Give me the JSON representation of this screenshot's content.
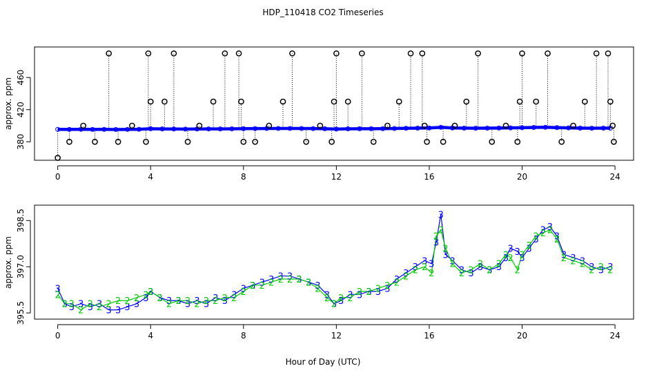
{
  "title": "HDP_110418  CO2 Timeseries",
  "chart_data": [
    {
      "type": "scatter",
      "ylabel": "approx. ppm",
      "xlim": [
        -1,
        24.8
      ],
      "ylim": [
        357,
        498
      ],
      "xticks": [
        0,
        4,
        8,
        12,
        16,
        20,
        24
      ],
      "yticks": [
        380,
        420,
        460
      ],
      "series": [
        {
          "color": "#0000ff",
          "x": [
            0.0,
            0.5,
            1.0,
            1.5,
            2.0,
            2.5,
            3.0,
            3.5,
            4.0,
            4.5,
            5.0,
            5.5,
            6.0,
            6.5,
            7.0,
            7.5,
            8.0,
            8.5,
            9.0,
            9.5,
            10.0,
            10.5,
            11.0,
            11.5,
            12.0,
            12.5,
            13.0,
            13.5,
            14.0,
            14.5,
            15.0,
            15.5,
            16.0,
            16.5,
            17.0,
            17.5,
            18.0,
            18.5,
            19.0,
            19.5,
            20.0,
            20.5,
            21.0,
            21.5,
            22.0,
            22.5,
            23.0,
            23.5,
            23.8
          ],
          "y": [
            395.5,
            395.4,
            395.6,
            395.4,
            395.5,
            395.3,
            395.4,
            395.6,
            396.2,
            396.0,
            395.9,
            395.8,
            395.9,
            396.0,
            396.0,
            396.1,
            396.3,
            396.4,
            396.5,
            396.6,
            396.6,
            396.5,
            396.4,
            396.2,
            395.8,
            396.1,
            396.2,
            396.2,
            396.3,
            396.5,
            396.8,
            397.0,
            397.2,
            398.0,
            397.2,
            397.0,
            396.9,
            397.0,
            397.1,
            397.3,
            397.5,
            397.8,
            398.0,
            397.6,
            397.3,
            397.0,
            396.9,
            397.0,
            397.0
          ]
        }
      ],
      "points": [
        {
          "x": 0.0,
          "y": 360
        },
        {
          "x": 0.5,
          "y": 380
        },
        {
          "x": 1.1,
          "y": 400
        },
        {
          "x": 1.6,
          "y": 380
        },
        {
          "x": 2.2,
          "y": 490
        },
        {
          "x": 2.6,
          "y": 380
        },
        {
          "x": 3.2,
          "y": 400
        },
        {
          "x": 3.8,
          "y": 380
        },
        {
          "x": 3.9,
          "y": 490
        },
        {
          "x": 4.0,
          "y": 430
        },
        {
          "x": 4.6,
          "y": 430
        },
        {
          "x": 5.0,
          "y": 490
        },
        {
          "x": 5.6,
          "y": 380
        },
        {
          "x": 6.1,
          "y": 400
        },
        {
          "x": 6.7,
          "y": 430
        },
        {
          "x": 7.2,
          "y": 490
        },
        {
          "x": 7.8,
          "y": 490
        },
        {
          "x": 7.9,
          "y": 430
        },
        {
          "x": 8.0,
          "y": 380
        },
        {
          "x": 8.5,
          "y": 380
        },
        {
          "x": 9.1,
          "y": 400
        },
        {
          "x": 9.7,
          "y": 430
        },
        {
          "x": 10.1,
          "y": 490
        },
        {
          "x": 10.7,
          "y": 380
        },
        {
          "x": 11.3,
          "y": 400
        },
        {
          "x": 11.8,
          "y": 380
        },
        {
          "x": 11.9,
          "y": 430
        },
        {
          "x": 12.0,
          "y": 490
        },
        {
          "x": 12.5,
          "y": 430
        },
        {
          "x": 13.1,
          "y": 490
        },
        {
          "x": 13.6,
          "y": 380
        },
        {
          "x": 14.2,
          "y": 400
        },
        {
          "x": 14.7,
          "y": 430
        },
        {
          "x": 15.2,
          "y": 490
        },
        {
          "x": 15.7,
          "y": 490
        },
        {
          "x": 15.8,
          "y": 400
        },
        {
          "x": 15.9,
          "y": 380
        },
        {
          "x": 16.6,
          "y": 380
        },
        {
          "x": 17.1,
          "y": 400
        },
        {
          "x": 17.6,
          "y": 430
        },
        {
          "x": 18.1,
          "y": 490
        },
        {
          "x": 18.7,
          "y": 380
        },
        {
          "x": 19.3,
          "y": 400
        },
        {
          "x": 19.8,
          "y": 380
        },
        {
          "x": 19.9,
          "y": 430
        },
        {
          "x": 20.0,
          "y": 490
        },
        {
          "x": 20.6,
          "y": 430
        },
        {
          "x": 21.1,
          "y": 490
        },
        {
          "x": 21.7,
          "y": 380
        },
        {
          "x": 22.2,
          "y": 400
        },
        {
          "x": 22.7,
          "y": 430
        },
        {
          "x": 23.2,
          "y": 490
        },
        {
          "x": 23.7,
          "y": 490
        },
        {
          "x": 23.8,
          "y": 430
        },
        {
          "x": 23.9,
          "y": 400
        },
        {
          "x": 23.95,
          "y": 380
        }
      ]
    },
    {
      "type": "line",
      "xlabel": "Hour of Day (UTC)",
      "ylabel": "approx. ppm",
      "xlim": [
        -1,
        24.8
      ],
      "ylim": [
        395.3,
        399.0
      ],
      "xticks": [
        0,
        4,
        8,
        12,
        16,
        20,
        24
      ],
      "yticks": [
        395.5,
        397.0,
        398.5
      ],
      "ytick_labels": [
        "395.5",
        "397.0",
        "398.5"
      ],
      "series": [
        {
          "name": "3",
          "color": "#0000ff",
          "x": [
            0.0,
            0.3,
            0.6,
            1.0,
            1.4,
            1.8,
            2.2,
            2.6,
            3.0,
            3.4,
            3.8,
            4.0,
            4.4,
            4.8,
            5.2,
            5.6,
            6.0,
            6.4,
            6.8,
            7.2,
            7.6,
            8.0,
            8.4,
            8.8,
            9.2,
            9.6,
            10.0,
            10.4,
            10.8,
            11.2,
            11.6,
            11.9,
            12.2,
            12.6,
            13.0,
            13.4,
            13.8,
            14.2,
            14.6,
            15.0,
            15.4,
            15.8,
            16.1,
            16.3,
            16.5,
            16.7,
            17.0,
            17.4,
            17.8,
            18.2,
            18.6,
            19.0,
            19.3,
            19.5,
            19.8,
            20.0,
            20.3,
            20.6,
            20.9,
            21.2,
            21.5,
            21.8,
            22.2,
            22.6,
            23.0,
            23.4,
            23.8
          ],
          "y": [
            396.3,
            395.8,
            395.7,
            395.8,
            395.7,
            395.8,
            395.6,
            395.6,
            395.7,
            395.8,
            396.0,
            396.2,
            396.0,
            395.9,
            395.9,
            395.8,
            395.9,
            395.8,
            396.0,
            395.9,
            396.1,
            396.3,
            396.4,
            396.5,
            396.6,
            396.7,
            396.7,
            396.6,
            396.5,
            396.4,
            396.1,
            395.8,
            395.9,
            396.1,
            396.1,
            396.2,
            396.2,
            396.3,
            396.6,
            396.8,
            397.0,
            397.2,
            397.1,
            397.8,
            398.7,
            397.4,
            397.2,
            396.9,
            396.8,
            397.0,
            396.9,
            397.0,
            397.3,
            397.6,
            397.5,
            397.3,
            397.6,
            397.9,
            398.2,
            398.3,
            398.0,
            397.4,
            397.3,
            397.2,
            397.0,
            396.9,
            397.0
          ]
        },
        {
          "name": "2",
          "color": "#00cc00",
          "x": [
            0.0,
            0.3,
            0.6,
            1.0,
            1.4,
            1.8,
            2.2,
            2.6,
            3.0,
            3.4,
            3.8,
            4.0,
            4.4,
            4.8,
            5.2,
            5.6,
            6.0,
            6.4,
            6.8,
            7.2,
            7.6,
            8.0,
            8.4,
            8.8,
            9.2,
            9.6,
            10.0,
            10.4,
            10.8,
            11.2,
            11.6,
            11.9,
            12.2,
            12.6,
            13.0,
            13.4,
            13.8,
            14.2,
            14.6,
            15.0,
            15.4,
            15.8,
            16.1,
            16.3,
            16.5,
            16.7,
            17.0,
            17.4,
            17.8,
            18.2,
            18.6,
            19.0,
            19.3,
            19.5,
            19.8,
            20.0,
            20.3,
            20.6,
            20.9,
            21.2,
            21.5,
            21.8,
            22.2,
            22.6,
            23.0,
            23.4,
            23.8
          ],
          "y": [
            396.1,
            395.8,
            395.8,
            395.6,
            395.8,
            395.7,
            395.8,
            395.9,
            395.9,
            396.0,
            396.1,
            396.2,
            396.0,
            395.8,
            395.9,
            395.9,
            395.8,
            395.9,
            395.9,
            396.0,
            396.0,
            396.2,
            396.4,
            396.4,
            396.5,
            396.6,
            396.6,
            396.6,
            396.5,
            396.3,
            396.0,
            395.8,
            396.0,
            396.0,
            396.2,
            396.2,
            396.3,
            396.4,
            396.5,
            396.7,
            396.9,
            397.0,
            396.8,
            398.0,
            398.2,
            397.6,
            397.1,
            396.8,
            396.9,
            397.1,
            396.9,
            397.1,
            397.4,
            397.3,
            396.9,
            397.4,
            397.7,
            398.0,
            398.1,
            398.2,
            397.9,
            397.3,
            397.2,
            397.1,
            396.9,
            397.0,
            396.9
          ]
        }
      ]
    }
  ]
}
